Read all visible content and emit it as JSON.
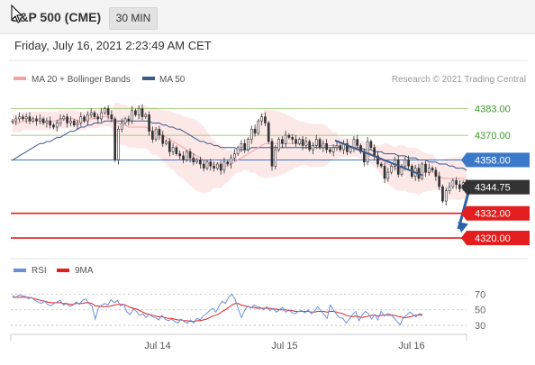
{
  "header": {
    "title": "S&P 500 (CME)",
    "timeframe": "30 MIN"
  },
  "datetime": "Friday, July 16, 2021 2:23:49 AM CET",
  "legend": {
    "ma20": "MA 20 + Bollinger Bands",
    "ma50": "MA 50"
  },
  "copyright": "Research © 2021 Trading Central",
  "colors": {
    "ma20": "#f4a3a3",
    "ma50": "#3a5a8c",
    "band": "#fde4e4",
    "resistance": "#8cc05a",
    "support": "#e31e1e",
    "pivot": "#3a78c9",
    "arrow": "#2e62a8",
    "rsi": "#6a8fd8",
    "ma9": "#e31e1e"
  },
  "rsi_legend": {
    "rsi": "RSI",
    "ma9": "9MA"
  },
  "chart_data": [
    {
      "type": "candlestick",
      "y_unit": "index points",
      "ylim": [
        4313,
        4392
      ],
      "x_ticks": [
        "Jul 14",
        "Jul 15",
        "Jul 16"
      ],
      "levels": [
        {
          "value": 4383.0,
          "label": "4383.00",
          "kind": "resistance"
        },
        {
          "value": 4370.0,
          "label": "4370.00",
          "kind": "resistance"
        },
        {
          "value": 4358.0,
          "label": "4358.00",
          "kind": "pivot"
        },
        {
          "value": 4344.75,
          "label": "4344.75",
          "kind": "last"
        },
        {
          "value": 4332.0,
          "label": "4332.00",
          "kind": "support"
        },
        {
          "value": 4320.0,
          "label": "4320.00",
          "kind": "support"
        }
      ],
      "close_series": [
        4377,
        4378,
        4379,
        4378,
        4379,
        4377,
        4378,
        4377,
        4378,
        4376,
        4377,
        4375,
        4374,
        4376,
        4378,
        4379,
        4376,
        4377,
        4375,
        4376,
        4379,
        4377,
        4380,
        4381,
        4379,
        4378,
        4381,
        4383,
        4380,
        4378,
        4358,
        4373,
        4376,
        4378,
        4377,
        4382,
        4380,
        4383,
        4379,
        4380,
        4372,
        4368,
        4373,
        4370,
        4366,
        4367,
        4362,
        4364,
        4361,
        4360,
        4358,
        4362,
        4359,
        4357,
        4358,
        4356,
        4354,
        4357,
        4355,
        4354,
        4356,
        4353,
        4357,
        4356,
        4359,
        4361,
        4364,
        4366,
        4363,
        4368,
        4373,
        4371,
        4377,
        4379,
        4376,
        4367,
        4355,
        4363,
        4368,
        4366,
        4370,
        4369,
        4368,
        4366,
        4368,
        4365,
        4367,
        4363,
        4365,
        4368,
        4364,
        4366,
        4363,
        4362,
        4364,
        4365,
        4363,
        4366,
        4362,
        4364,
        4368,
        4365,
        4362,
        4357,
        4367,
        4364,
        4360,
        4356,
        4355,
        4349,
        4352,
        4355,
        4358,
        4351,
        4355,
        4358,
        4355,
        4350,
        4354,
        4349,
        4356,
        4352,
        4354,
        4353,
        4350,
        4345,
        4338,
        4343,
        4345,
        4348,
        4346,
        4344,
        4347,
        4344.75
      ],
      "trendline": [
        [
          4367.5,
          4350.5
        ]
      ],
      "arrow_target": 4320.0,
      "series": [
        {
          "name": "MA 20",
          "values": [
            4376,
            4376,
            4376,
            4377,
            4377,
            4377,
            4377,
            4377,
            4377,
            4377,
            4377,
            4377,
            4377,
            4377,
            4378,
            4378,
            4378,
            4378,
            4378,
            4377,
            4377,
            4377,
            4378,
            4378,
            4378,
            4378,
            4379,
            4379,
            4379,
            4378,
            4376,
            4376,
            4375,
            4375,
            4374,
            4374,
            4374,
            4374,
            4374,
            4374,
            4373,
            4372,
            4372,
            4371,
            4370,
            4369,
            4368,
            4367,
            4366,
            4365,
            4364,
            4363,
            4362,
            4361,
            4360,
            4359,
            4358,
            4357,
            4356,
            4356,
            4355,
            4355,
            4355,
            4355,
            4356,
            4357,
            4358,
            4359,
            4360,
            4361,
            4362,
            4363,
            4364,
            4365,
            4366,
            4366,
            4366,
            4366,
            4366,
            4366,
            4366,
            4366,
            4366,
            4366,
            4366,
            4366,
            4366,
            4365,
            4365,
            4365,
            4365,
            4365,
            4365,
            4365,
            4365,
            4365,
            4364,
            4364,
            4364,
            4364,
            4364,
            4364,
            4363,
            4362,
            4362,
            4361,
            4360,
            4359,
            4358,
            4357,
            4356,
            4355,
            4354,
            4354,
            4354,
            4354,
            4353,
            4353,
            4353,
            4352,
            4352,
            4352,
            4352,
            4352,
            4351,
            4350,
            4349,
            4349,
            4349,
            4349,
            4349,
            4349,
            4349,
            4348
          ]
        },
        {
          "name": "MA 50",
          "values": [
            4358,
            4359,
            4360,
            4361,
            4362,
            4363,
            4364,
            4365,
            4366,
            4366,
            4367,
            4367,
            4368,
            4369,
            4369,
            4370,
            4371,
            4372,
            4372,
            4373,
            4374,
            4374,
            4375,
            4375,
            4376,
            4376,
            4376,
            4377,
            4377,
            4377,
            4377,
            4377,
            4377,
            4377,
            4377,
            4377,
            4377,
            4377,
            4377,
            4377,
            4377,
            4376,
            4376,
            4376,
            4375,
            4375,
            4374,
            4374,
            4373,
            4373,
            4372,
            4371,
            4370,
            4369,
            4368,
            4367,
            4367,
            4366,
            4366,
            4365,
            4365,
            4364,
            4364,
            4364,
            4364,
            4364,
            4363,
            4363,
            4363,
            4363,
            4364,
            4364,
            4364,
            4364,
            4364,
            4364,
            4364,
            4364,
            4364,
            4364,
            4364,
            4364,
            4364,
            4364,
            4364,
            4364,
            4364,
            4364,
            4364,
            4364,
            4364,
            4364,
            4364,
            4364,
            4364,
            4364,
            4364,
            4364,
            4364,
            4364,
            4364,
            4364,
            4364,
            4363,
            4363,
            4363,
            4362,
            4362,
            4362,
            4361,
            4361,
            4361,
            4361,
            4360,
            4360,
            4360,
            4359,
            4359,
            4359,
            4358,
            4358,
            4358,
            4357,
            4357,
            4357,
            4356,
            4356,
            4356,
            4355,
            4355,
            4354,
            4354,
            4354,
            4353
          ]
        }
      ]
    },
    {
      "type": "line",
      "ylim": [
        22,
        82
      ],
      "y_ticks": [
        70,
        50,
        30
      ],
      "x_ticks": [
        "Jul 14",
        "Jul 15",
        "Jul 16"
      ],
      "series": [
        {
          "name": "RSI",
          "values": [
            68,
            66,
            69,
            68,
            67,
            64,
            66,
            62,
            60,
            58,
            61,
            57,
            55,
            58,
            60,
            62,
            56,
            58,
            54,
            56,
            60,
            57,
            62,
            64,
            58,
            55,
            38,
            52,
            56,
            58,
            56,
            63,
            59,
            62,
            55,
            57,
            47,
            44,
            51,
            48,
            43,
            45,
            40,
            44,
            41,
            40,
            37,
            43,
            38,
            36,
            38,
            35,
            33,
            38,
            35,
            33,
            37,
            33,
            39,
            37,
            42,
            45,
            49,
            52,
            47,
            55,
            61,
            58,
            66,
            70,
            64,
            52,
            40,
            49,
            55,
            52,
            56,
            54,
            53,
            50,
            54,
            49,
            52,
            47,
            50,
            53,
            47,
            50,
            46,
            45,
            48,
            49,
            46,
            50,
            45,
            48,
            54,
            49,
            44,
            39,
            56,
            50,
            44,
            40,
            39,
            33,
            38,
            44,
            48,
            36,
            43,
            48,
            45,
            38,
            44,
            37,
            48,
            42,
            45,
            44,
            40,
            35,
            31,
            40,
            43,
            47,
            44,
            41,
            45,
            44
          ]
        },
        {
          "name": "9MA",
          "values": [
            66,
            66,
            66,
            66,
            66,
            66,
            65,
            64,
            63,
            62,
            61,
            60,
            59,
            59,
            59,
            59,
            58,
            58,
            57,
            57,
            58,
            58,
            58,
            59,
            59,
            58,
            55,
            55,
            54,
            54,
            54,
            55,
            56,
            57,
            57,
            57,
            55,
            53,
            52,
            51,
            49,
            47,
            45,
            44,
            43,
            42,
            41,
            41,
            40,
            39,
            39,
            38,
            37,
            37,
            36,
            36,
            35,
            35,
            36,
            36,
            37,
            38,
            40,
            42,
            43,
            45,
            48,
            50,
            53,
            56,
            58,
            58,
            56,
            55,
            54,
            53,
            53,
            52,
            52,
            52,
            52,
            52,
            51,
            51,
            50,
            50,
            50,
            49,
            49,
            48,
            48,
            48,
            48,
            48,
            47,
            47,
            48,
            48,
            48,
            47,
            48,
            48,
            47,
            46,
            45,
            43,
            42,
            41,
            42,
            41,
            40,
            41,
            42,
            43,
            43,
            42,
            43,
            43,
            43,
            43,
            43,
            42,
            41,
            40,
            40,
            41,
            42,
            43,
            43,
            43
          ]
        }
      ]
    }
  ]
}
